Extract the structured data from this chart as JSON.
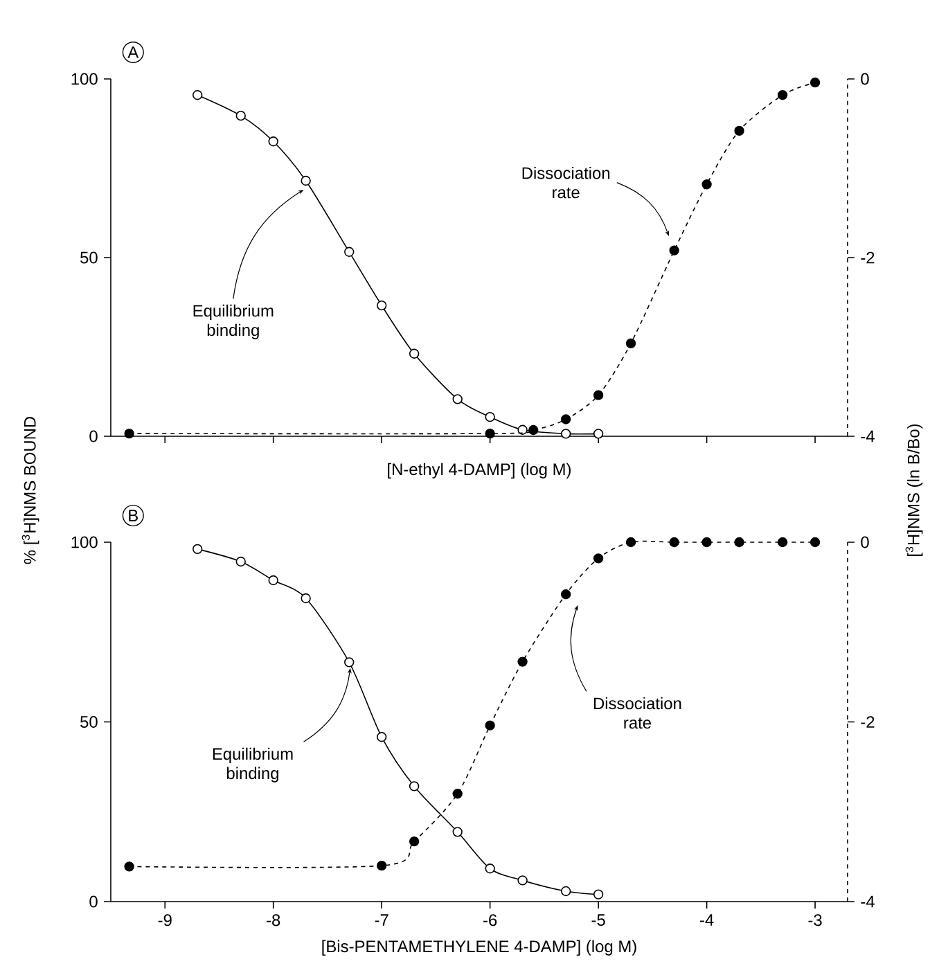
{
  "chart_data": [
    {
      "type": "line",
      "title": "A",
      "xlabel": "[N-ethyl 4-DAMP]  (log M)",
      "ylabel": "% [$^{3}$H]NMS BOUND",
      "y2label": "[$^{3}$H]NMS  (ln B/Bo)",
      "xlim": [
        -9.5,
        -2.7
      ],
      "xticks": [
        -9,
        -8,
        -7,
        -6,
        -5,
        -4,
        -3
      ],
      "ylim": [
        0,
        100
      ],
      "yticks": [
        0,
        50,
        100
      ],
      "y2lim": [
        -4,
        0
      ],
      "y2ticks": [
        -4,
        -2,
        0
      ],
      "tick_labels": "y",
      "marker": "circle",
      "series": [
        {
          "axis": "y",
          "color": "#000000",
          "line_style": "solid",
          "x": [
            -8.7,
            -8.3,
            -8,
            -7.7,
            -7.3,
            -7,
            -6.7,
            -6.3,
            -6,
            -5.7,
            -5.3,
            -5
          ],
          "values": [
            95.5,
            89.7,
            82.5,
            71.5,
            51.6,
            36.6,
            23.1,
            10.4,
            5.4,
            1.8,
            0.7,
            0.7
          ]
        },
        {
          "axis": "y2",
          "color": "#000000",
          "line_style": "dashed",
          "x": [
            -9.33,
            -6,
            -5.6,
            -5.3,
            -5,
            -4.7,
            -4.3,
            -4,
            -3.7,
            -3.3,
            -3
          ],
          "values": [
            -3.97,
            -3.97,
            -3.93,
            -3.81,
            -3.54,
            -2.96,
            -1.92,
            -1.18,
            -0.58,
            -0.18,
            -0.04
          ]
        }
      ],
      "annotations": [
        {
          "text": "Equilibrium binding",
          "x": -7.72,
          "y": 69
        },
        {
          "text": "Dissociation rate",
          "x": -4.35,
          "y": 56
        }
      ]
    },
    {
      "type": "line",
      "title": "B",
      "xlabel": "[Bis-PENTAMETHYLENE 4-DAMP]  (log M)",
      "xlim": [
        -9.5,
        -2.7
      ],
      "xticks": [
        -9,
        -8,
        -7,
        -6,
        -5,
        -4,
        -3
      ],
      "ylim": [
        0,
        100
      ],
      "yticks": [
        0,
        50,
        100
      ],
      "y2lim": [
        -4,
        0
      ],
      "y2ticks": [
        -4,
        -2,
        0
      ],
      "marker": "circle",
      "series": [
        {
          "axis": "y",
          "color": "#000000",
          "line_style": "solid",
          "x": [
            -8.7,
            -8.3,
            -8,
            -7.7,
            -7.3,
            -7,
            -6.7,
            -6.3,
            -6,
            -5.7,
            -5.3,
            -5
          ],
          "values": [
            98.1,
            94.6,
            89.4,
            84.4,
            66.6,
            45.8,
            32.1,
            19.4,
            9.2,
            5.9,
            2.9,
            2.0
          ]
        },
        {
          "axis": "y2",
          "color": "#000000",
          "line_style": "dashed",
          "x": [
            -9.33,
            -7,
            -6.7,
            -6.3,
            -6,
            -5.7,
            -5.3,
            -5,
            -4.7,
            -4.3,
            -4,
            -3.7,
            -3.3,
            -3
          ],
          "values": [
            -3.61,
            -3.6,
            -3.33,
            -2.8,
            -2.04,
            -1.33,
            -0.58,
            -0.18,
            0,
            0,
            0,
            0,
            0,
            0
          ]
        }
      ],
      "annotations": [
        {
          "text": "Equilibrium binding",
          "x": -7.29,
          "y": 65
        },
        {
          "text": "Dissociation rate",
          "x": -5.19,
          "y": 82.5
        }
      ]
    }
  ]
}
